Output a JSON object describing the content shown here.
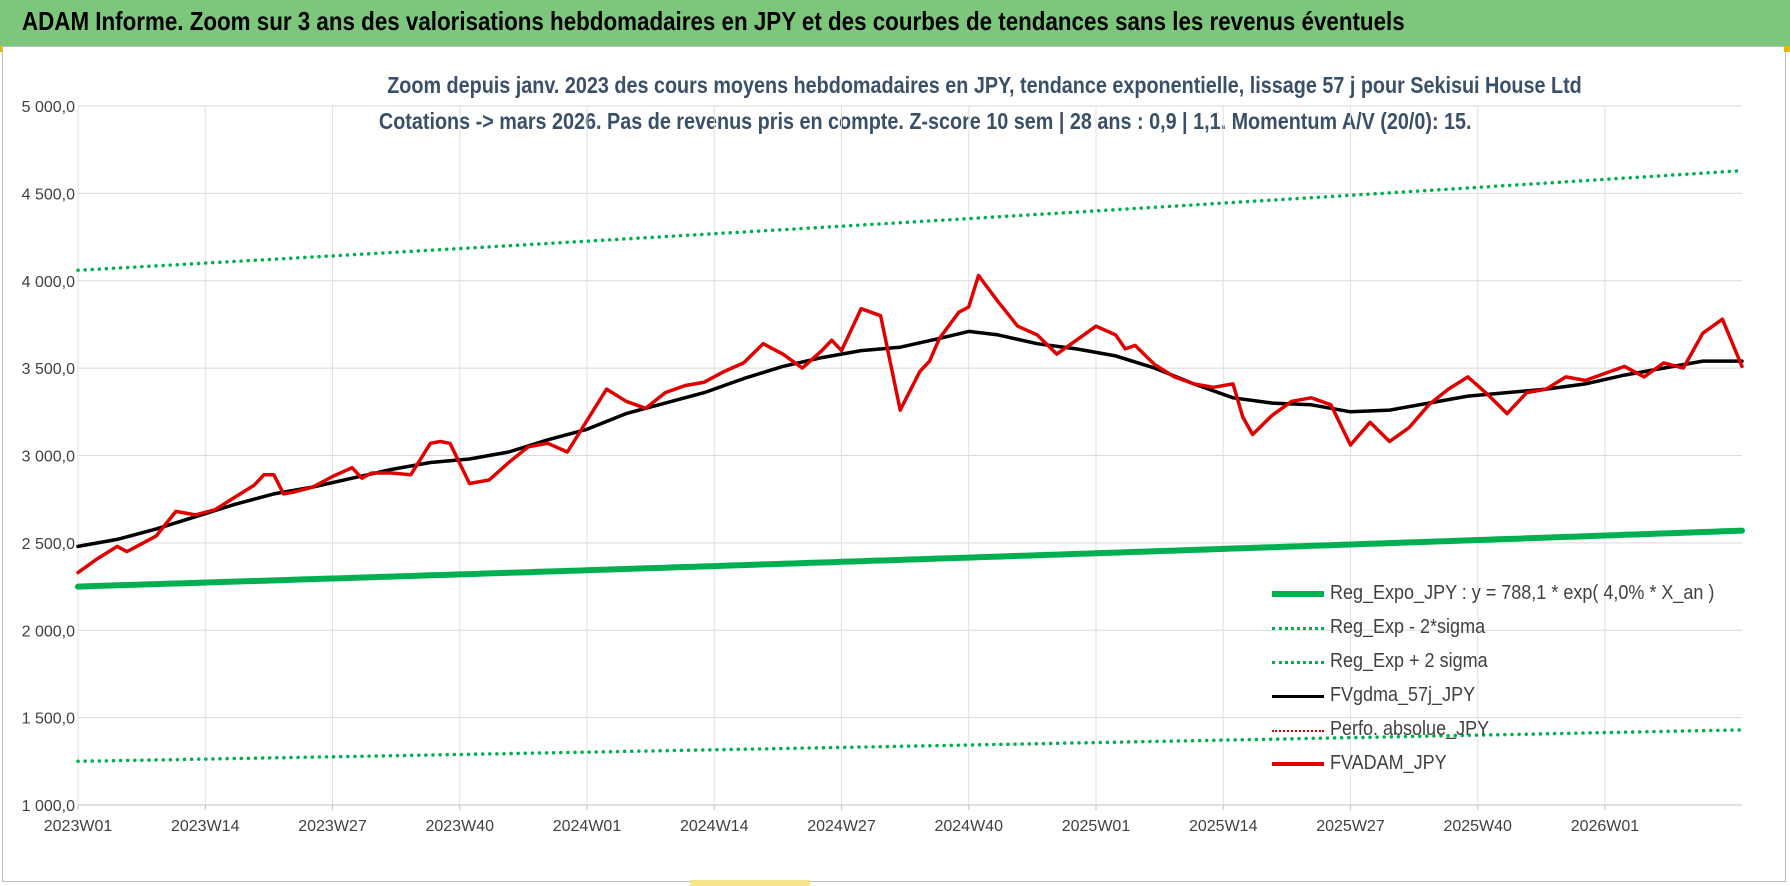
{
  "header": {
    "title": "ADAM Informe. Zoom sur 3 ans des valorisations hebdomadaires en JPY et des courbes de tendances sans les revenus éventuels"
  },
  "chart_data": {
    "type": "line",
    "title": "Zoom depuis janv. 2023 des cours moyens hebdomadaires en JPY, tendance exponentielle, lissage 57 j pour Sekisui House Ltd",
    "subtitle": "Cotations -> mars 2026. Pas de revenus pris en compte. Z-score 10 sem | 28 ans : 0,9 | 1,1. Momentum A/V (20/0): 15.",
    "xlabel": "",
    "ylabel": "",
    "ylim": [
      1000,
      5000
    ],
    "yticks": [
      "1 000,0",
      "1 500,0",
      "2 000,0",
      "2 500,0",
      "3 000,0",
      "3 500,0",
      "4 000,0",
      "4 500,0",
      "5 000,0"
    ],
    "yticks_values": [
      1000,
      1500,
      2000,
      2500,
      3000,
      3500,
      4000,
      4500,
      5000
    ],
    "xticks": [
      "2023W01",
      "2023W14",
      "2023W27",
      "2023W40",
      "2024W01",
      "2024W14",
      "2024W27",
      "2024W40",
      "2025W01",
      "2025W14",
      "2025W27",
      "2025W40",
      "2026W01"
    ],
    "xticks_index": [
      0,
      13,
      26,
      39,
      52,
      65,
      78,
      91,
      104,
      117,
      130,
      143,
      156
    ],
    "n_weeks": 171,
    "grid": true,
    "legend_position": "bottom-right",
    "series": [
      {
        "name": "Reg_Expo_JPY : y = 788,1 * exp( 4,0% *  X_an )",
        "color": "#00b050",
        "style": "thick",
        "x": [
          0,
          170
        ],
        "values": [
          2250,
          2570
        ]
      },
      {
        "name": "Reg_Exp - 2*sigma",
        "color": "#00b050",
        "style": "dotted",
        "x": [
          0,
          170
        ],
        "values": [
          1250,
          1430
        ]
      },
      {
        "name": "Reg_Exp + 2 sigma",
        "color": "#00b050",
        "style": "dotted",
        "x": [
          0,
          170
        ],
        "values": [
          4060,
          4630
        ]
      },
      {
        "name": "FVgdma_57j_JPY",
        "color": "#000000",
        "style": "solid",
        "x": [
          0,
          4,
          8,
          12,
          16,
          20,
          24,
          28,
          32,
          36,
          40,
          44,
          48,
          52,
          56,
          60,
          64,
          68,
          72,
          76,
          80,
          84,
          88,
          91,
          94,
          98,
          102,
          106,
          110,
          114,
          118,
          122,
          126,
          130,
          134,
          138,
          142,
          146,
          150,
          154,
          158,
          162,
          166,
          170
        ],
        "values": [
          2480,
          2520,
          2580,
          2650,
          2720,
          2780,
          2820,
          2870,
          2920,
          2960,
          2980,
          3020,
          3090,
          3150,
          3240,
          3300,
          3360,
          3440,
          3510,
          3560,
          3600,
          3620,
          3670,
          3710,
          3690,
          3640,
          3610,
          3570,
          3500,
          3410,
          3330,
          3300,
          3290,
          3250,
          3260,
          3300,
          3340,
          3360,
          3380,
          3410,
          3460,
          3500,
          3540,
          3540
        ]
      },
      {
        "name": "Perfo. absolue_JPY",
        "color": "#e00000",
        "style": "dotted",
        "x": [],
        "values": []
      },
      {
        "name": "FVADAM_JPY",
        "color": "#e00000",
        "style": "solid",
        "x": [
          0,
          2,
          4,
          5,
          6,
          8,
          10,
          12,
          14,
          16,
          18,
          19,
          20,
          21,
          22,
          24,
          26,
          28,
          29,
          30,
          32,
          34,
          36,
          37,
          38,
          40,
          42,
          44,
          46,
          48,
          50,
          52,
          54,
          56,
          58,
          60,
          62,
          64,
          66,
          68,
          70,
          71,
          72,
          74,
          76,
          77,
          78,
          80,
          82,
          84,
          86,
          87,
          88,
          90,
          91,
          92,
          94,
          96,
          98,
          100,
          102,
          104,
          106,
          107,
          108,
          110,
          112,
          114,
          116,
          118,
          119,
          120,
          122,
          124,
          126,
          128,
          130,
          132,
          134,
          136,
          138,
          140,
          142,
          144,
          146,
          148,
          150,
          152,
          154,
          156,
          158,
          160,
          162,
          164,
          166,
          168,
          170
        ],
        "values": [
          2330,
          2410,
          2480,
          2450,
          2480,
          2540,
          2680,
          2660,
          2690,
          2760,
          2830,
          2890,
          2890,
          2780,
          2790,
          2820,
          2880,
          2930,
          2870,
          2900,
          2900,
          2890,
          3070,
          3080,
          3070,
          2840,
          2860,
          2960,
          3050,
          3070,
          3020,
          3200,
          3380,
          3310,
          3270,
          3360,
          3400,
          3420,
          3480,
          3530,
          3640,
          3610,
          3580,
          3500,
          3600,
          3660,
          3600,
          3840,
          3800,
          3260,
          3480,
          3540,
          3670,
          3820,
          3850,
          4030,
          3880,
          3740,
          3690,
          3580,
          3660,
          3740,
          3690,
          3610,
          3630,
          3520,
          3450,
          3410,
          3390,
          3410,
          3220,
          3120,
          3230,
          3310,
          3330,
          3290,
          3060,
          3190,
          3080,
          3160,
          3290,
          3380,
          3450,
          3350,
          3240,
          3360,
          3380,
          3450,
          3430,
          3470,
          3510,
          3450,
          3530,
          3500,
          3700,
          3780,
          3510
        ]
      }
    ]
  }
}
